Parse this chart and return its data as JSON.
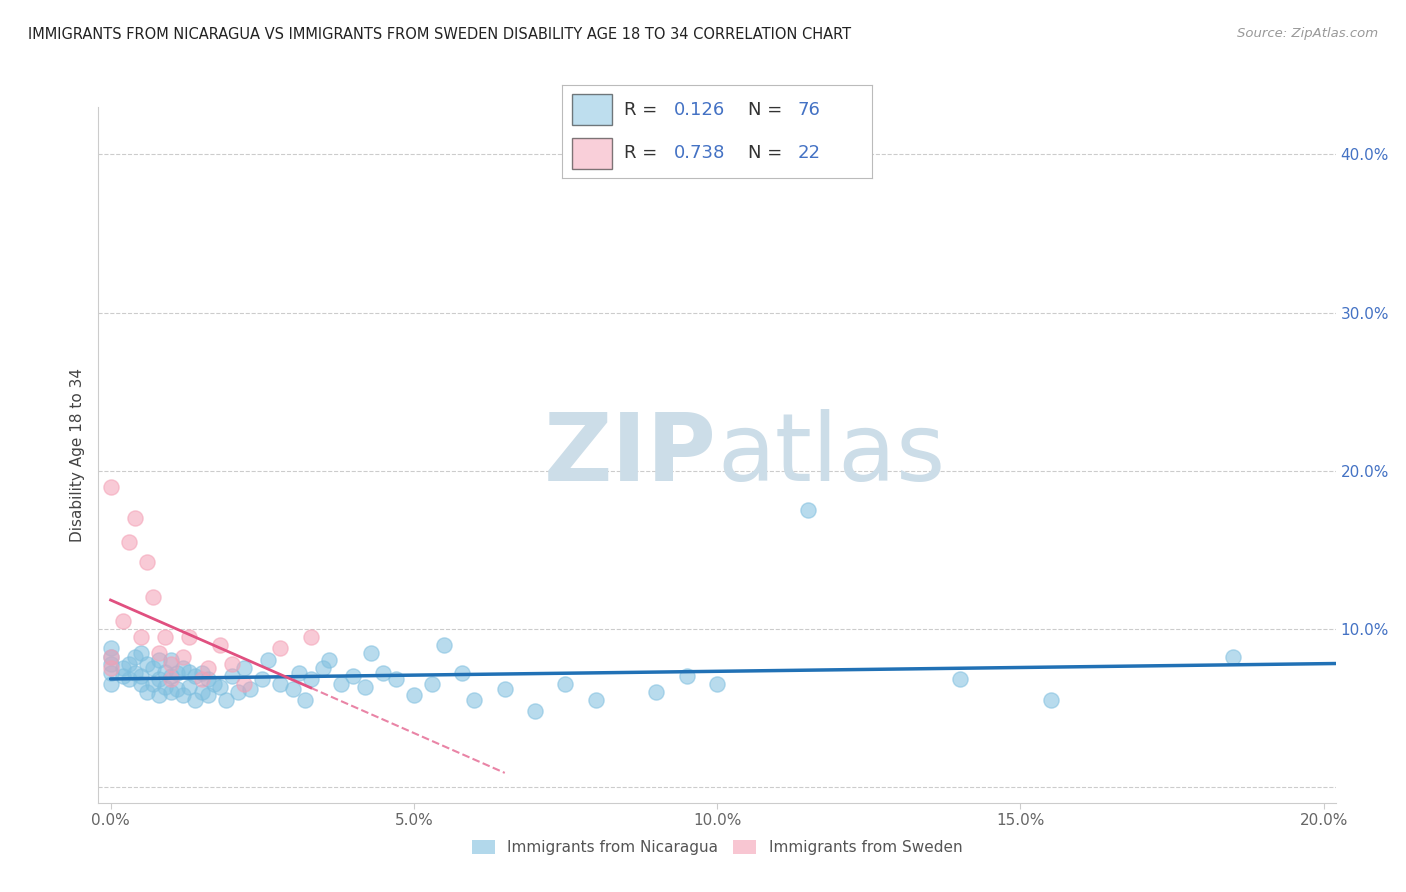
{
  "title": "IMMIGRANTS FROM NICARAGUA VS IMMIGRANTS FROM SWEDEN DISABILITY AGE 18 TO 34 CORRELATION CHART",
  "source": "Source: ZipAtlas.com",
  "ylabel": "Disability Age 18 to 34",
  "xlim": [
    -0.002,
    0.202
  ],
  "ylim": [
    -0.01,
    0.43
  ],
  "xticks": [
    0.0,
    0.05,
    0.1,
    0.15,
    0.2
  ],
  "xticklabels": [
    "0.0%",
    "5.0%",
    "10.0%",
    "15.0%",
    "20.0%"
  ],
  "yticks": [
    0.0,
    0.1,
    0.2,
    0.3,
    0.4
  ],
  "yticklabels": [
    "",
    "10.0%",
    "20.0%",
    "30.0%",
    "40.0%"
  ],
  "nicaragua_R": 0.126,
  "nicaragua_N": 76,
  "sweden_R": 0.738,
  "sweden_N": 22,
  "nicaragua_color": "#7fbfdf",
  "sweden_color": "#f4a0b5",
  "nicaragua_line_color": "#2171b5",
  "sweden_line_color": "#e05080",
  "watermark_zip": "ZIP",
  "watermark_atlas": "atlas",
  "watermark_color": "#ccdde8",
  "legend_labels": [
    "Immigrants from Nicaragua",
    "Immigrants from Sweden"
  ],
  "nicaragua_x": [
    0.0,
    0.0,
    0.0,
    0.0,
    0.0,
    0.002,
    0.002,
    0.003,
    0.003,
    0.004,
    0.004,
    0.005,
    0.005,
    0.005,
    0.006,
    0.006,
    0.007,
    0.007,
    0.008,
    0.008,
    0.008,
    0.009,
    0.009,
    0.01,
    0.01,
    0.01,
    0.011,
    0.011,
    0.012,
    0.012,
    0.013,
    0.013,
    0.014,
    0.014,
    0.015,
    0.015,
    0.016,
    0.016,
    0.017,
    0.018,
    0.019,
    0.02,
    0.021,
    0.022,
    0.023,
    0.025,
    0.026,
    0.028,
    0.03,
    0.031,
    0.032,
    0.033,
    0.035,
    0.036,
    0.038,
    0.04,
    0.042,
    0.043,
    0.045,
    0.047,
    0.05,
    0.053,
    0.055,
    0.058,
    0.06,
    0.065,
    0.07,
    0.075,
    0.08,
    0.09,
    0.095,
    0.1,
    0.115,
    0.14,
    0.155,
    0.185
  ],
  "nicaragua_y": [
    0.065,
    0.072,
    0.078,
    0.082,
    0.088,
    0.07,
    0.075,
    0.068,
    0.078,
    0.072,
    0.082,
    0.065,
    0.07,
    0.085,
    0.06,
    0.078,
    0.065,
    0.075,
    0.058,
    0.068,
    0.08,
    0.063,
    0.073,
    0.06,
    0.07,
    0.08,
    0.062,
    0.072,
    0.058,
    0.075,
    0.063,
    0.073,
    0.055,
    0.07,
    0.06,
    0.072,
    0.058,
    0.068,
    0.065,
    0.063,
    0.055,
    0.07,
    0.06,
    0.075,
    0.062,
    0.068,
    0.08,
    0.065,
    0.062,
    0.072,
    0.055,
    0.068,
    0.075,
    0.08,
    0.065,
    0.07,
    0.063,
    0.085,
    0.072,
    0.068,
    0.058,
    0.065,
    0.09,
    0.072,
    0.055,
    0.062,
    0.048,
    0.065,
    0.055,
    0.06,
    0.07,
    0.065,
    0.175,
    0.068,
    0.055,
    0.082
  ],
  "sweden_x": [
    0.0,
    0.0,
    0.0,
    0.002,
    0.003,
    0.004,
    0.005,
    0.006,
    0.007,
    0.008,
    0.009,
    0.01,
    0.01,
    0.012,
    0.013,
    0.015,
    0.016,
    0.018,
    0.02,
    0.022,
    0.028,
    0.033
  ],
  "sweden_y": [
    0.075,
    0.082,
    0.19,
    0.105,
    0.155,
    0.17,
    0.095,
    0.142,
    0.12,
    0.085,
    0.095,
    0.068,
    0.078,
    0.082,
    0.095,
    0.068,
    0.075,
    0.09,
    0.078,
    0.065,
    0.088,
    0.095
  ]
}
